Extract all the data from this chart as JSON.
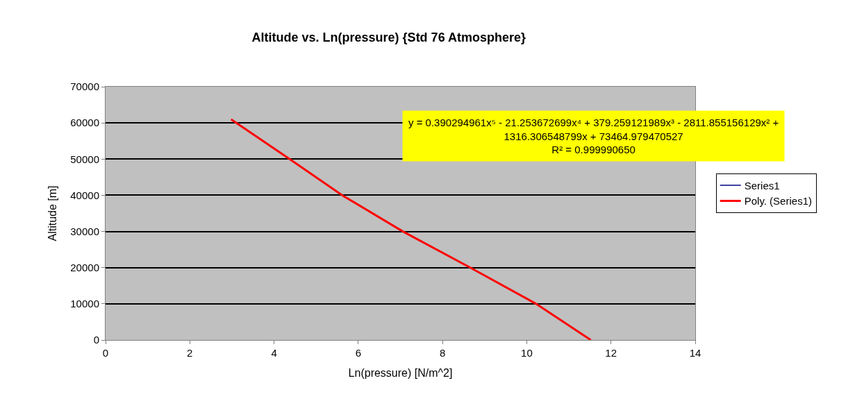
{
  "chart_data": {
    "type": "line",
    "title": "Altitude vs. Ln(pressure) {Std 76 Atmosphere}",
    "xlabel": "Ln(pressure) [N/m^2]",
    "ylabel": "Altitude [m]",
    "x": [
      2.98,
      4.37,
      5.62,
      7.06,
      8.66,
      10.22,
      11.52
    ],
    "series": [
      {
        "name": "Series1",
        "color": "#000080",
        "values": [
          null,
          null,
          null,
          null,
          null,
          null,
          null
        ]
      },
      {
        "name": "Poly. (Series1)",
        "color": "#ff0000",
        "values": [
          61000,
          50000,
          40000,
          30000,
          20000,
          10000,
          0
        ]
      }
    ],
    "xlim": [
      0,
      14
    ],
    "xticks": [
      0,
      2,
      4,
      6,
      8,
      10,
      12,
      14
    ],
    "ylim": [
      0,
      70000
    ],
    "yticks": [
      0,
      10000,
      20000,
      30000,
      40000,
      50000,
      60000,
      70000
    ],
    "grid": "y",
    "legend": "right",
    "marker": "none",
    "line_style": "solid",
    "annotations": [
      "y = 0.390294961x⁵ - 21.253672699x⁴ + 379.259121989x³ - 2811.855156129x² +\n1316.306548799x + 73464.979470527\nR² = 0.999990650"
    ]
  }
}
